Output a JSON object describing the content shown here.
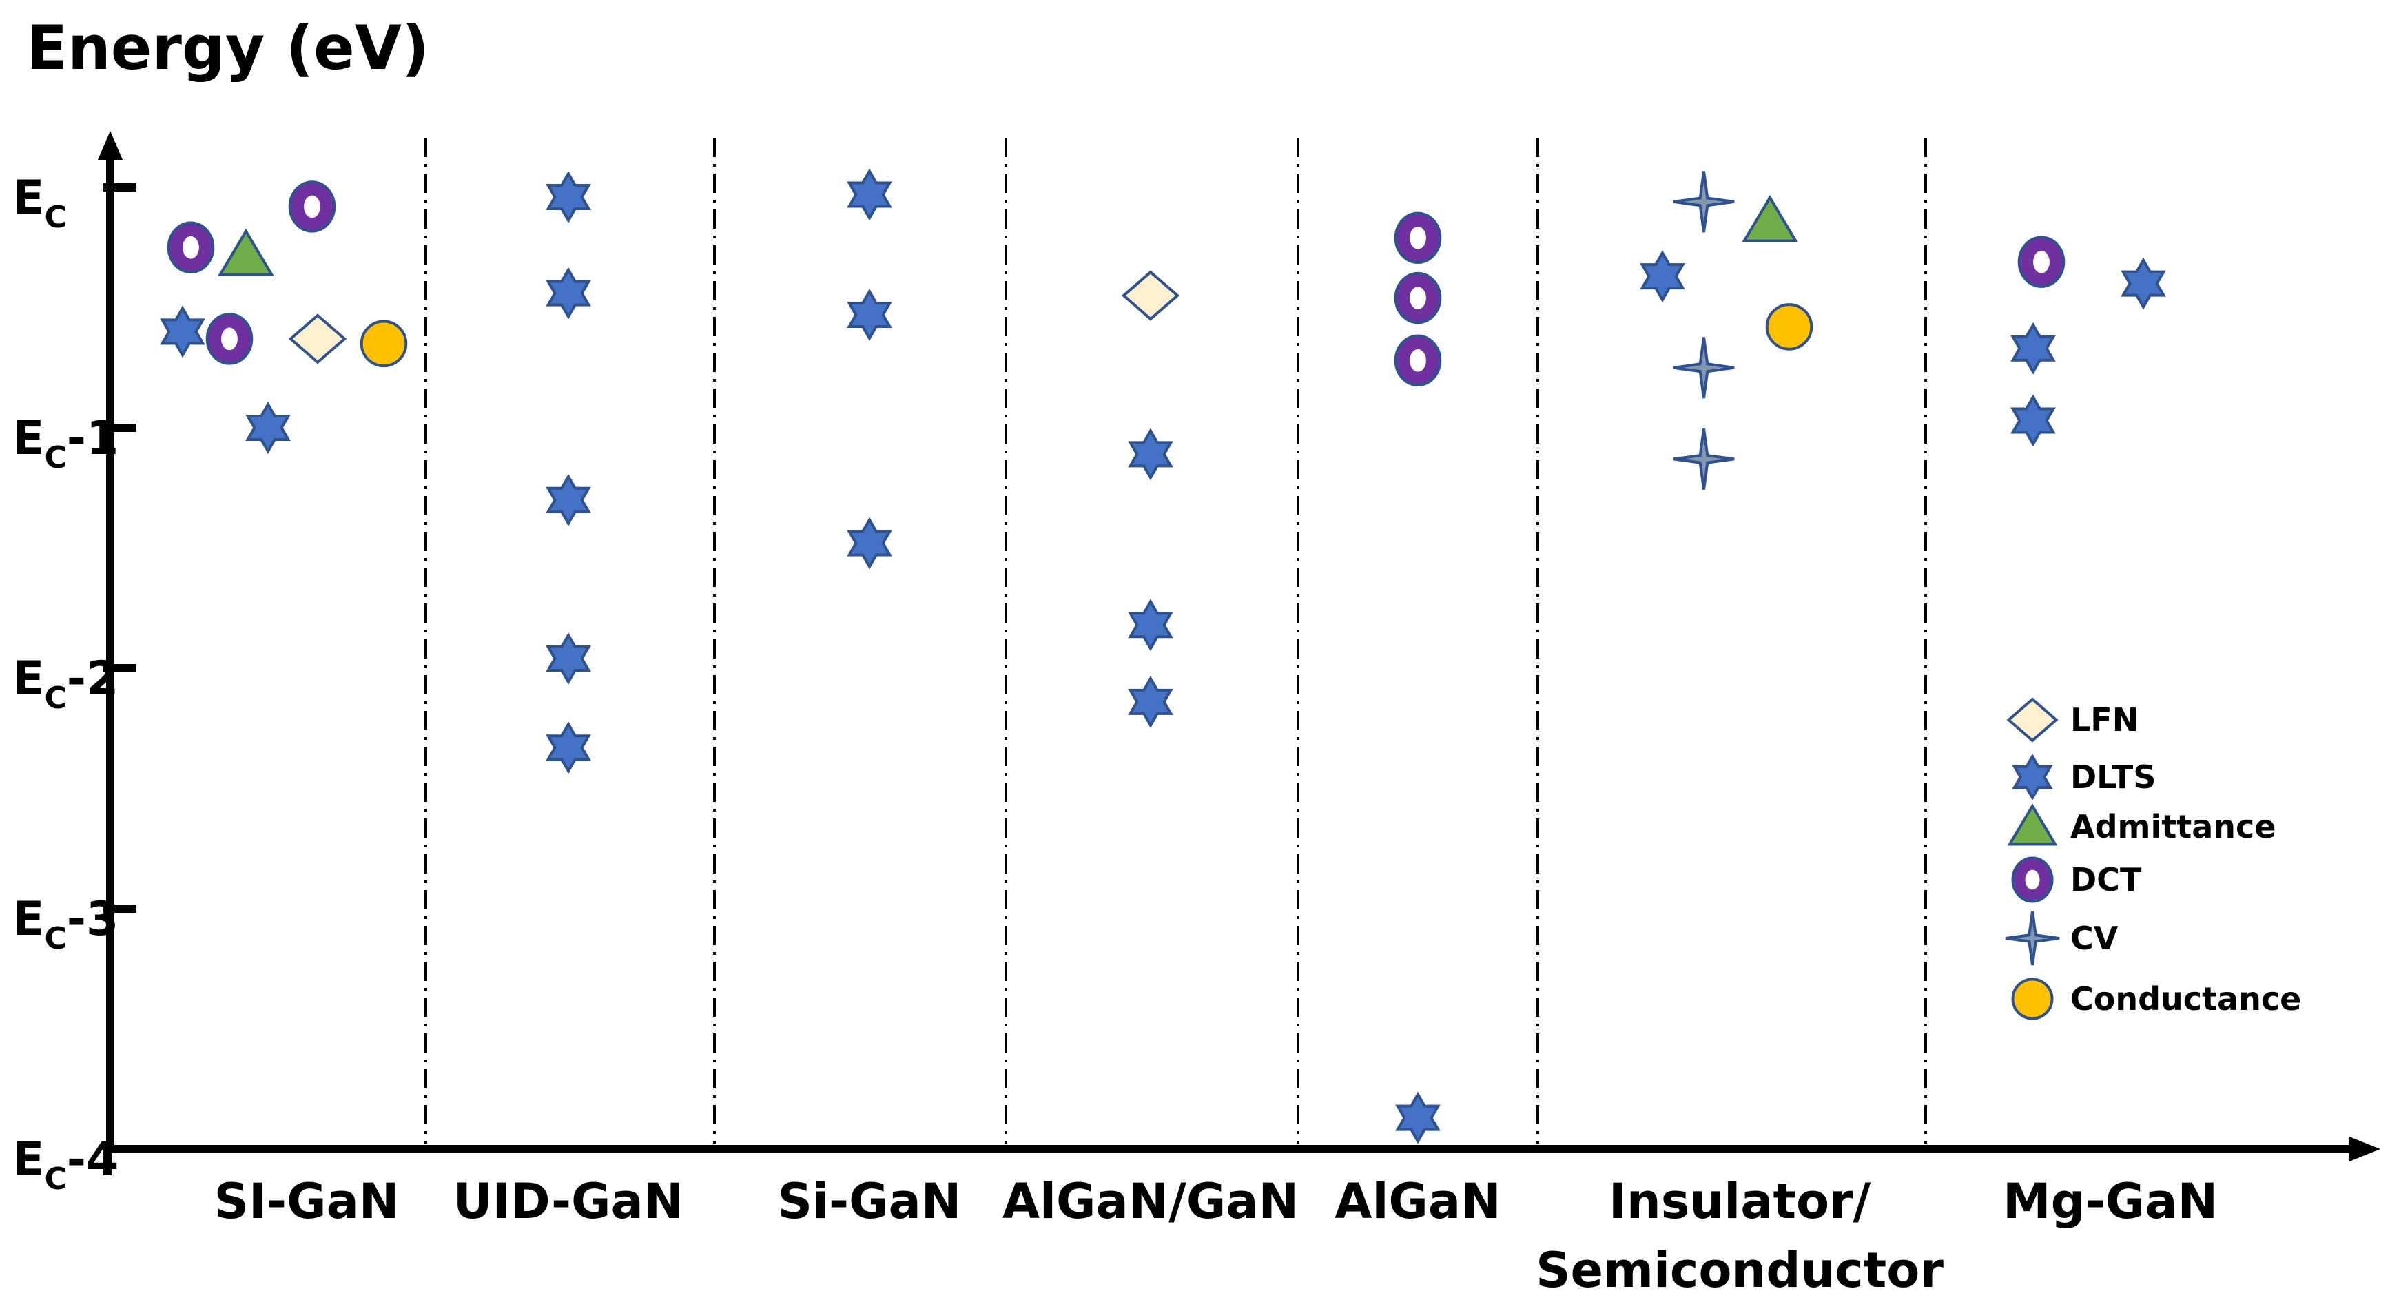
{
  "chart_data": {
    "type": "scatter",
    "title": "Energy (eV)",
    "ylabel": "Energy (eV)",
    "xlabel": "",
    "ylim": [
      0,
      4
    ],
    "y_ticks": [
      {
        "value": 0,
        "label_main": "E",
        "label_sub": "C",
        "label_suffix": ""
      },
      {
        "value": 1,
        "label_main": "E",
        "label_sub": "C",
        "label_suffix": "-1"
      },
      {
        "value": 2,
        "label_main": "E",
        "label_sub": "C",
        "label_suffix": "-2"
      },
      {
        "value": 3,
        "label_main": "E",
        "label_sub": "C",
        "label_suffix": "-3"
      },
      {
        "value": 4,
        "label_main": "E",
        "label_sub": "C",
        "label_suffix": "-4"
      }
    ],
    "categories": [
      {
        "name": "SI-GaN",
        "lines": [
          "SI-GaN"
        ]
      },
      {
        "name": "UID-GaN",
        "lines": [
          "UID-GaN"
        ]
      },
      {
        "name": "Si-GaN",
        "lines": [
          "Si-GaN"
        ]
      },
      {
        "name": "AlGaN/GaN",
        "lines": [
          "AlGaN/GaN"
        ]
      },
      {
        "name": "AlGaN",
        "lines": [
          "AlGaN"
        ]
      },
      {
        "name": "Insulator/Semiconductor",
        "lines": [
          "Insulator/",
          "Semiconductor"
        ]
      },
      {
        "name": "Mg-GaN",
        "lines": [
          "Mg-GaN"
        ]
      }
    ],
    "legend": {
      "position": "bottom-right",
      "entries": [
        {
          "label": "LFN",
          "marker": "diamond",
          "fill": "#FDF0CE",
          "stroke": "#2F528F"
        },
        {
          "label": "DLTS",
          "marker": "hexagram",
          "fill": "#4472C4",
          "stroke": "#2F528F"
        },
        {
          "label": "Admittance",
          "marker": "triangle",
          "fill": "#70AD47",
          "stroke": "#2F528F"
        },
        {
          "label": "DCT",
          "marker": "ring",
          "fill": "#7030A0",
          "stroke": "#2F528F"
        },
        {
          "label": "CV",
          "marker": "star4",
          "fill": "#8497B0",
          "stroke": "#2F528F"
        },
        {
          "label": "Conductance",
          "marker": "circle",
          "fill": "#FFC000",
          "stroke": "#2F528F"
        }
      ]
    },
    "series": [
      {
        "name": "LFN",
        "points": [
          {
            "category": "SI-GaN",
            "offset": 0.04,
            "y": 0.63
          },
          {
            "category": "AlGaN/GaN",
            "offset": 0.0,
            "y": 0.45
          }
        ]
      },
      {
        "name": "DLTS",
        "points": [
          {
            "category": "SI-GaN",
            "offset": -0.45,
            "y": 0.6
          },
          {
            "category": "SI-GaN",
            "offset": -0.14,
            "y": 1.0
          },
          {
            "category": "UID-GaN",
            "offset": 0.0,
            "y": 0.04
          },
          {
            "category": "UID-GaN",
            "offset": 0.0,
            "y": 0.44
          },
          {
            "category": "UID-GaN",
            "offset": 0.0,
            "y": 1.3
          },
          {
            "category": "UID-GaN",
            "offset": 0.0,
            "y": 1.96
          },
          {
            "category": "UID-GaN",
            "offset": 0.0,
            "y": 2.33
          },
          {
            "category": "Si-GaN",
            "offset": 0.0,
            "y": 0.03
          },
          {
            "category": "Si-GaN",
            "offset": 0.0,
            "y": 0.53
          },
          {
            "category": "Si-GaN",
            "offset": 0.0,
            "y": 1.48
          },
          {
            "category": "AlGaN/GaN",
            "offset": 0.0,
            "y": 1.11
          },
          {
            "category": "AlGaN/GaN",
            "offset": 0.0,
            "y": 1.82
          },
          {
            "category": "AlGaN/GaN",
            "offset": 0.0,
            "y": 2.14
          },
          {
            "category": "AlGaN",
            "offset": 0.0,
            "y": 3.87
          },
          {
            "category": "Insulator/Semiconductor",
            "offset": -0.28,
            "y": 0.37
          },
          {
            "category": "Mg-GaN",
            "offset": -0.28,
            "y": 0.67
          },
          {
            "category": "Mg-GaN",
            "offset": -0.28,
            "y": 0.97
          },
          {
            "category": "Mg-GaN",
            "offset": 0.12,
            "y": 0.4
          }
        ]
      },
      {
        "name": "Admittance",
        "points": [
          {
            "category": "SI-GaN",
            "offset": -0.22,
            "y": 0.28
          },
          {
            "category": "Insulator/Semiconductor",
            "offset": 0.11,
            "y": 0.14
          }
        ]
      },
      {
        "name": "DCT",
        "points": [
          {
            "category": "SI-GaN",
            "offset": -0.42,
            "y": 0.25
          },
          {
            "category": "SI-GaN",
            "offset": -0.28,
            "y": 0.63
          },
          {
            "category": "SI-GaN",
            "offset": 0.02,
            "y": 0.08
          },
          {
            "category": "AlGaN",
            "offset": 0.0,
            "y": 0.21
          },
          {
            "category": "AlGaN",
            "offset": 0.0,
            "y": 0.46
          },
          {
            "category": "AlGaN",
            "offset": 0.0,
            "y": 0.72
          },
          {
            "category": "Mg-GaN",
            "offset": -0.25,
            "y": 0.31
          }
        ]
      },
      {
        "name": "CV",
        "points": [
          {
            "category": "Insulator/Semiconductor",
            "offset": -0.13,
            "y": 0.06
          },
          {
            "category": "Insulator/Semiconductor",
            "offset": -0.13,
            "y": 0.75
          },
          {
            "category": "Insulator/Semiconductor",
            "offset": -0.13,
            "y": 1.13
          }
        ]
      },
      {
        "name": "Conductance",
        "points": [
          {
            "category": "SI-GaN",
            "offset": 0.28,
            "y": 0.65
          },
          {
            "category": "Insulator/Semiconductor",
            "offset": 0.18,
            "y": 0.58
          }
        ]
      }
    ]
  }
}
